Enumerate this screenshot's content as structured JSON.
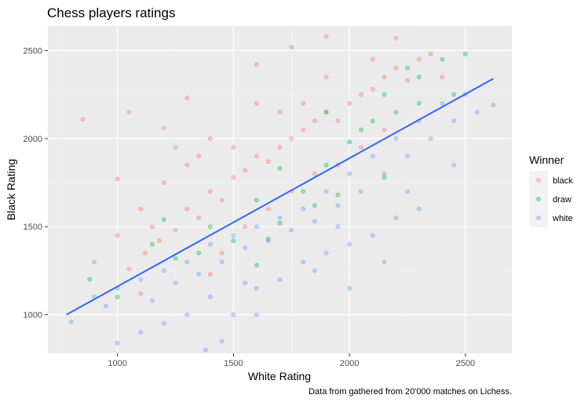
{
  "chart_data": {
    "type": "scatter",
    "title": "Chess players ratings",
    "xlabel": "White Rating",
    "ylabel": "Black Rating",
    "caption": "Data from gathered from 20'000 matches on Lichess.",
    "xlim": [
      700,
      2700
    ],
    "ylim": [
      780,
      2640
    ],
    "x_ticks": [
      1000,
      1500,
      2000,
      2500
    ],
    "y_ticks": [
      1000,
      1500,
      2000,
      2500
    ],
    "grid": true,
    "legend": {
      "title": "Winner",
      "position": "right"
    },
    "series": [
      {
        "name": "black",
        "color": "#F8766D",
        "points": [
          [
            1050,
            1260
          ],
          [
            1120,
            1350
          ],
          [
            1180,
            1420
          ],
          [
            1250,
            1480
          ],
          [
            1300,
            1600
          ],
          [
            1350,
            1550
          ],
          [
            1400,
            1700
          ],
          [
            1450,
            1650
          ],
          [
            1500,
            1780
          ],
          [
            1550,
            1820
          ],
          [
            1600,
            1900
          ],
          [
            1650,
            1870
          ],
          [
            1700,
            1950
          ],
          [
            1750,
            2000
          ],
          [
            1800,
            2050
          ],
          [
            1850,
            2100
          ],
          [
            1900,
            2150
          ],
          [
            1950,
            2100
          ],
          [
            2000,
            2200
          ],
          [
            2050,
            2250
          ],
          [
            2100,
            2280
          ],
          [
            2150,
            2350
          ],
          [
            2200,
            2400
          ],
          [
            2250,
            2330
          ],
          [
            2300,
            2450
          ],
          [
            1200,
            1750
          ],
          [
            1300,
            1850
          ],
          [
            1100,
            1600
          ],
          [
            1000,
            1450
          ],
          [
            1400,
            2000
          ],
          [
            1600,
            2200
          ],
          [
            1500,
            1950
          ],
          [
            1700,
            2150
          ],
          [
            1800,
            2200
          ],
          [
            1900,
            2350
          ],
          [
            2100,
            2450
          ],
          [
            1250,
            1950
          ],
          [
            1350,
            1900
          ],
          [
            1150,
            1500
          ],
          [
            900,
            1300
          ],
          [
            850,
            2110
          ],
          [
            1450,
            1350
          ],
          [
            1550,
            1500
          ],
          [
            1650,
            1600
          ],
          [
            1750,
            1700
          ],
          [
            1850,
            1800
          ],
          [
            1950,
            1850
          ],
          [
            2050,
            1950
          ],
          [
            2150,
            2050
          ],
          [
            2400,
            2350
          ],
          [
            1050,
            2150
          ],
          [
            1200,
            2060
          ],
          [
            1300,
            2230
          ],
          [
            1000,
            1770
          ],
          [
            1100,
            1120
          ],
          [
            1400,
            1230
          ],
          [
            1600,
            2420
          ],
          [
            1900,
            2580
          ],
          [
            2200,
            2570
          ],
          [
            2350,
            2480
          ]
        ]
      },
      {
        "name": "draw",
        "color": "#00BA38",
        "points": [
          [
            1150,
            1400
          ],
          [
            1250,
            1320
          ],
          [
            1400,
            1500
          ],
          [
            1500,
            1420
          ],
          [
            1600,
            1650
          ],
          [
            1700,
            1520
          ],
          [
            1800,
            1700
          ],
          [
            1900,
            1850
          ],
          [
            2000,
            1980
          ],
          [
            2100,
            2100
          ],
          [
            2200,
            2150
          ],
          [
            2300,
            2350
          ],
          [
            2400,
            2450
          ],
          [
            2500,
            2480
          ],
          [
            1700,
            1830
          ],
          [
            1900,
            2150
          ],
          [
            2150,
            2250
          ],
          [
            2250,
            2400
          ],
          [
            1350,
            1350
          ],
          [
            1950,
            1680
          ],
          [
            1850,
            1620
          ],
          [
            2050,
            2050
          ],
          [
            2300,
            2200
          ],
          [
            1650,
            1430
          ],
          [
            1200,
            1540
          ],
          [
            880,
            1200
          ],
          [
            1000,
            1100
          ],
          [
            2450,
            2250
          ],
          [
            1600,
            1280
          ],
          [
            2150,
            1780
          ]
        ]
      },
      {
        "name": "white",
        "color": "#619CFF",
        "points": [
          [
            800,
            960
          ],
          [
            900,
            1100
          ],
          [
            950,
            1050
          ],
          [
            1000,
            1150
          ],
          [
            1100,
            1200
          ],
          [
            1150,
            1080
          ],
          [
            1200,
            1250
          ],
          [
            1250,
            1180
          ],
          [
            1300,
            1300
          ],
          [
            1350,
            1230
          ],
          [
            1400,
            1400
          ],
          [
            1450,
            1300
          ],
          [
            1500,
            1450
          ],
          [
            1550,
            1380
          ],
          [
            1600,
            1500
          ],
          [
            1650,
            1420
          ],
          [
            1700,
            1550
          ],
          [
            1750,
            1480
          ],
          [
            1800,
            1600
          ],
          [
            1850,
            1530
          ],
          [
            1900,
            1700
          ],
          [
            1950,
            1620
          ],
          [
            2000,
            1800
          ],
          [
            2050,
            1700
          ],
          [
            2100,
            1900
          ],
          [
            2150,
            1800
          ],
          [
            2200,
            2000
          ],
          [
            2250,
            1900
          ],
          [
            2300,
            2100
          ],
          [
            2350,
            2000
          ],
          [
            2400,
            2200
          ],
          [
            2450,
            2100
          ],
          [
            2500,
            2250
          ],
          [
            2550,
            2150
          ],
          [
            2620,
            2190
          ],
          [
            1400,
            1100
          ],
          [
            1500,
            1000
          ],
          [
            1600,
            1150
          ],
          [
            1700,
            1200
          ],
          [
            1800,
            1300
          ],
          [
            1900,
            1350
          ],
          [
            2000,
            1400
          ],
          [
            2100,
            1450
          ],
          [
            2200,
            1550
          ],
          [
            1300,
            1000
          ],
          [
            1450,
            850
          ],
          [
            1380,
            800
          ],
          [
            1200,
            950
          ],
          [
            1100,
            900
          ],
          [
            1000,
            840
          ],
          [
            2000,
            1150
          ],
          [
            2150,
            1300
          ],
          [
            2300,
            1600
          ],
          [
            2450,
            1850
          ],
          [
            1750,
            2520
          ],
          [
            1600,
            1000
          ],
          [
            1550,
            1180
          ],
          [
            1850,
            1250
          ],
          [
            2250,
            1700
          ],
          [
            1950,
            1500
          ]
        ]
      }
    ],
    "trend_line": {
      "color": "#3366FF",
      "x": [
        780,
        2620
      ],
      "y": [
        1000,
        2340
      ]
    }
  }
}
